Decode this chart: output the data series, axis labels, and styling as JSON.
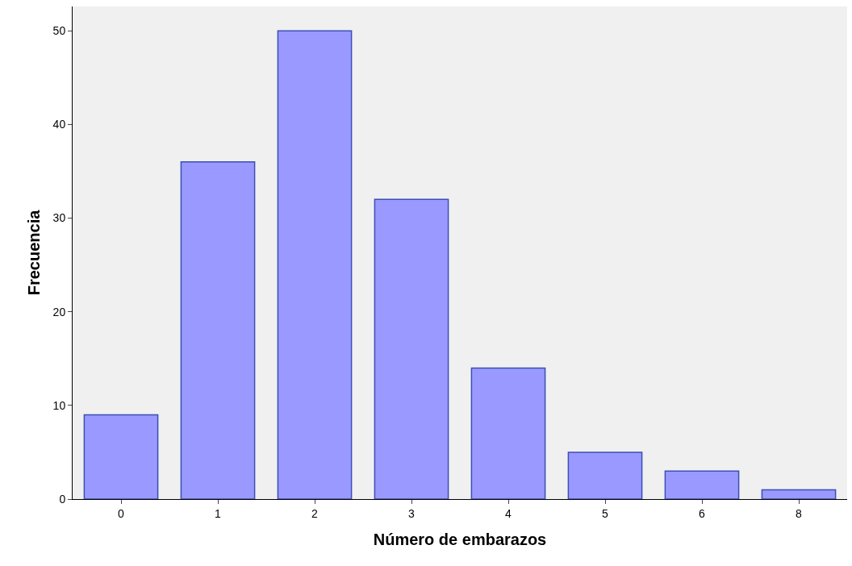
{
  "chart_data": {
    "type": "bar",
    "xlabel": "Número de embarazos",
    "ylabel": "Frecuencia",
    "categories": [
      "0",
      "1",
      "2",
      "3",
      "4",
      "5",
      "6",
      "8"
    ],
    "values": [
      9,
      36,
      50,
      32,
      14,
      5,
      3,
      1
    ],
    "color": "#9999ff",
    "ylim": [
      0,
      52.6
    ],
    "yticks": [
      0,
      10,
      20,
      30,
      40,
      50
    ],
    "grid": false,
    "legend": false
  }
}
